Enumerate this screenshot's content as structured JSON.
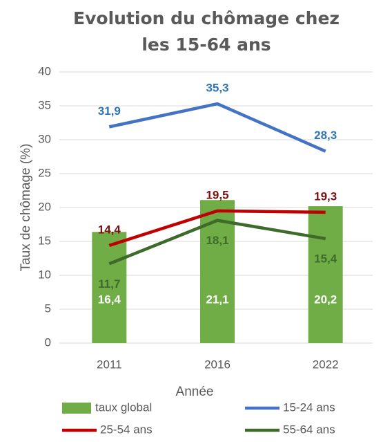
{
  "chart_data": {
    "type": "bar",
    "title": "Evolution du chômage chez les 15-64 ans",
    "x_label": "Année",
    "y_label": "Taux de chômage (%)",
    "categories": [
      "2011",
      "2016",
      "2022"
    ],
    "ylim": [
      0,
      40
    ],
    "yticks": [
      0,
      5,
      10,
      15,
      20,
      25,
      30,
      35,
      40
    ],
    "grid": true,
    "series": [
      {
        "name": "taux global",
        "type": "bar",
        "color": "#70ad47",
        "label_color": "#ffffff",
        "label_position": "inside-base",
        "values": [
          16.4,
          21.1,
          20.2
        ],
        "value_labels": [
          "16,4",
          "21,1",
          "20,2"
        ]
      },
      {
        "name": "15-24 ans",
        "type": "line",
        "color": "#4472c4",
        "label_color": "#2e75b6",
        "label_position": "above",
        "values": [
          31.9,
          35.3,
          28.3
        ],
        "value_labels": [
          "31,9",
          "35,3",
          "28,3"
        ]
      },
      {
        "name": "25-54 ans",
        "type": "line",
        "color": "#c00000",
        "label_color": "#7b1010",
        "label_position": "above",
        "values": [
          14.4,
          19.5,
          19.3
        ],
        "value_labels": [
          "14,4",
          "19,5",
          "19,3"
        ]
      },
      {
        "name": "55-64 ans",
        "type": "line",
        "color": "#3e6b2a",
        "label_color": "#3e6b2a",
        "label_position": "below",
        "values": [
          11.7,
          18.1,
          15.4
        ],
        "value_labels": [
          "11,7",
          "18,1",
          "15,4"
        ]
      }
    ],
    "legend": "bottom"
  }
}
